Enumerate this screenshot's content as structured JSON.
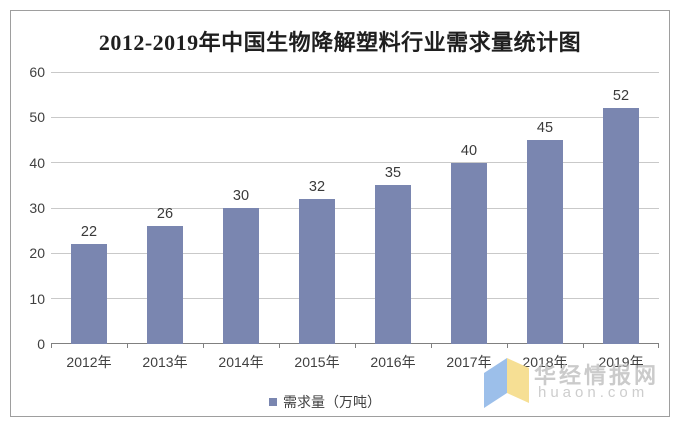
{
  "chart_data": {
    "type": "bar",
    "title": "2012-2019年中国生物降解塑料行业需求量统计图",
    "categories": [
      "2012年",
      "2013年",
      "2014年",
      "2015年",
      "2016年",
      "2017年",
      "2018年",
      "2019年"
    ],
    "values": [
      22,
      26,
      30,
      32,
      35,
      40,
      45,
      52
    ],
    "xlabel": "",
    "ylabel": "",
    "ylim": [
      0,
      60
    ],
    "yticks": [
      0,
      10,
      20,
      30,
      40,
      50,
      60
    ],
    "grid": true,
    "value_labels": true,
    "legend": "需求量（万吨）",
    "legend_position": "bottom",
    "colors": {
      "bar": "#7a86b0",
      "gridline": "#c9c9c9",
      "axis": "#808080",
      "text": "#404040",
      "title": "#1f1f1f"
    }
  },
  "watermark": {
    "site_name": "华经情报网",
    "domain": "huaon.com",
    "logo_blue": "#9cbfea",
    "logo_yellow": "#f6df94"
  }
}
